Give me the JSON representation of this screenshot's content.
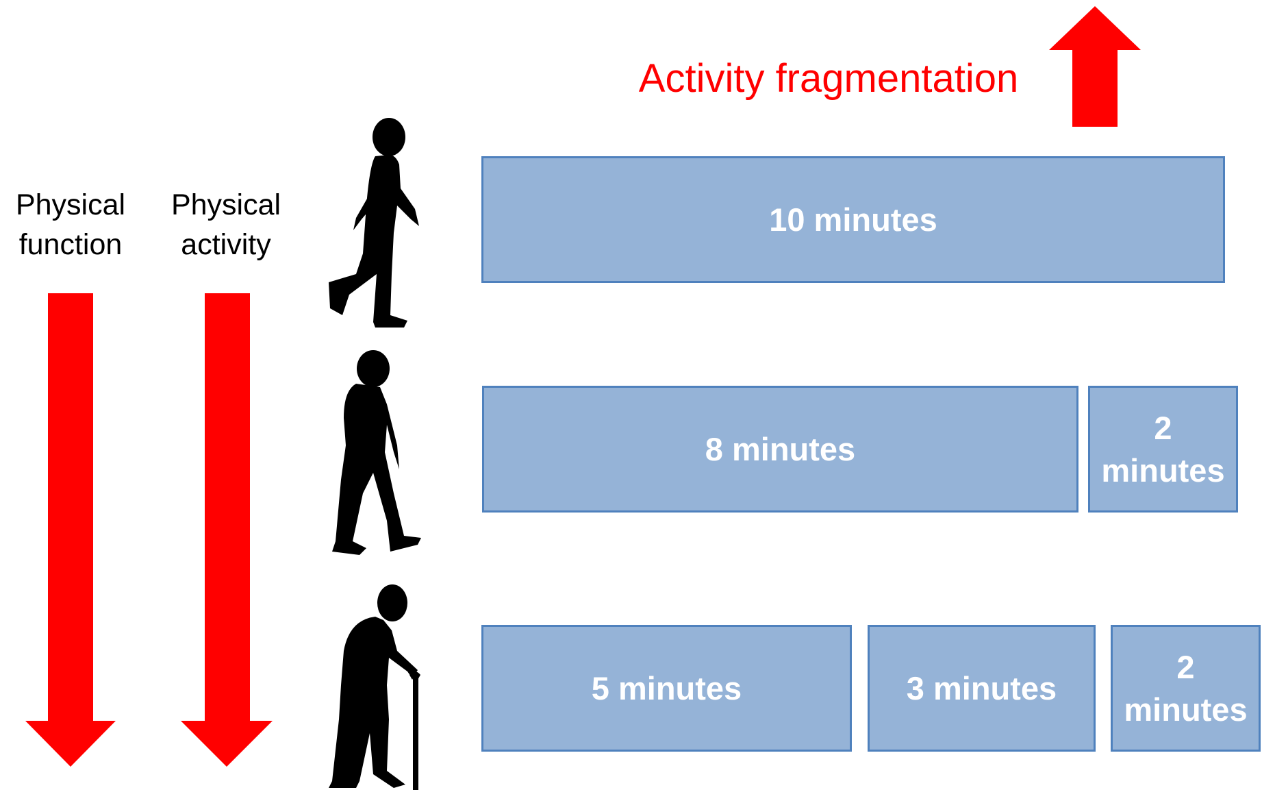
{
  "title": "Activity fragmentation",
  "left_labels": [
    "Physical function",
    "Physical activity"
  ],
  "rows": [
    [
      "10 minutes"
    ],
    [
      "8 minutes",
      "2 minutes"
    ],
    [
      "5 minutes",
      "3 minutes",
      "2 minutes"
    ]
  ]
}
